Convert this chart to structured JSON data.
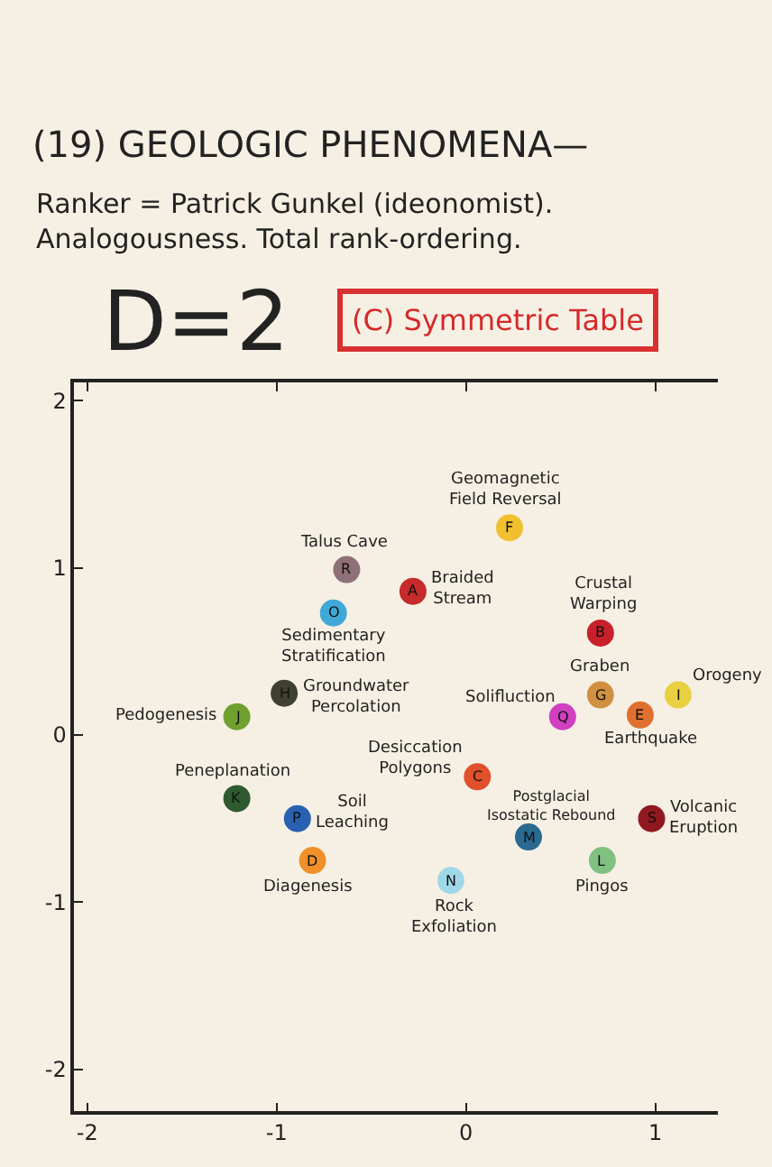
{
  "chart_data": {
    "type": "scatter",
    "title": "(19) GEOLOGIC PHENOMENA—",
    "subtitle": "Ranker = Patrick Gunkel (ideonomist).\nAnalogousness. Total rank-ordering.",
    "marker": "circle",
    "xlim": [
      -2.07,
      1.33
    ],
    "ylim": [
      -2.25,
      2.11
    ],
    "xticks": [
      -2,
      -1,
      0,
      1
    ],
    "yticks": [
      -2,
      -1,
      0,
      1,
      2
    ],
    "series": [
      {
        "name": "Braided\nStream",
        "color": "#c62a2a",
        "x": [
          -0.28
        ],
        "values": [
          0.86
        ]
      },
      {
        "name": "Crustal\nWarping",
        "color": "#c8202a",
        "x": [
          0.71
        ],
        "values": [
          0.61
        ]
      },
      {
        "name": "Desiccation\nPolygons",
        "color": "#e0502a",
        "x": [
          0.06
        ],
        "values": [
          -0.25
        ]
      },
      {
        "name": "Diagenesis",
        "color": "#f0902a",
        "x": [
          -0.81
        ],
        "values": [
          -0.75
        ]
      },
      {
        "name": "Earthquake",
        "color": "#e07030",
        "x": [
          0.92
        ],
        "values": [
          0.12
        ]
      },
      {
        "name": "Geomagnetic\nField Reversal",
        "color": "#f0c030",
        "x": [
          0.23
        ],
        "values": [
          1.24
        ]
      },
      {
        "name": "Graben",
        "color": "#d09040",
        "x": [
          0.71
        ],
        "values": [
          0.24
        ]
      },
      {
        "name": "Groundwater\nPercolation",
        "color": "#404030",
        "x": [
          -0.96
        ],
        "values": [
          0.25
        ]
      },
      {
        "name": "Orogeny",
        "color": "#e8d040",
        "x": [
          1.12
        ],
        "values": [
          0.24
        ]
      },
      {
        "name": "Pedogenesis",
        "color": "#70a030",
        "x": [
          -1.21
        ],
        "values": [
          0.11
        ]
      },
      {
        "name": "Peneplanation",
        "color": "#2f5a30",
        "x": [
          -1.21
        ],
        "values": [
          -0.38
        ]
      },
      {
        "name": "Pingos",
        "color": "#80c080",
        "x": [
          0.72
        ],
        "values": [
          -0.75
        ]
      },
      {
        "name": "Postglacial\nIsostatic Rebound",
        "color": "#2a6a90",
        "x": [
          0.33
        ],
        "values": [
          -0.61
        ]
      },
      {
        "name": "Rock\nExfoliation",
        "color": "#a0d8e8",
        "x": [
          -0.08
        ],
        "values": [
          -0.87
        ]
      },
      {
        "name": "Sedimentary\nStratification",
        "color": "#40a8d8",
        "x": [
          -0.7
        ],
        "values": [
          0.73
        ]
      },
      {
        "name": "Soil\nLeaching",
        "color": "#2a60b0",
        "x": [
          -0.89
        ],
        "values": [
          -0.5
        ]
      },
      {
        "name": "Solifluction",
        "color": "#d040c0",
        "x": [
          0.51
        ],
        "values": [
          0.11
        ]
      },
      {
        "name": "Talus Cave",
        "color": "#907078",
        "x": [
          -0.63
        ],
        "values": [
          0.99
        ]
      },
      {
        "name": "Volcanic\nEruption",
        "color": "#901820",
        "x": [
          0.98
        ],
        "values": [
          -0.5
        ]
      }
    ],
    "annotations": [
      "D=2",
      "(C) Symmetric Table",
      {
        "text": "A",
        "x": -0.28,
        "y": 0.86
      },
      {
        "text": "B",
        "x": 0.71,
        "y": 0.61
      },
      {
        "text": "C",
        "x": 0.06,
        "y": -0.25
      },
      {
        "text": "D",
        "x": -0.81,
        "y": -0.75
      },
      {
        "text": "E",
        "x": 0.92,
        "y": 0.12
      },
      {
        "text": "F",
        "x": 0.23,
        "y": 1.24
      },
      {
        "text": "G",
        "x": 0.71,
        "y": 0.24
      },
      {
        "text": "H",
        "x": -0.96,
        "y": 0.25
      },
      {
        "text": "I",
        "x": 1.12,
        "y": 0.24
      },
      {
        "text": "J",
        "x": -1.21,
        "y": 0.11
      },
      {
        "text": "K",
        "x": -1.21,
        "y": -0.38
      },
      {
        "text": "L",
        "x": 0.72,
        "y": -0.75
      },
      {
        "text": "M",
        "x": 0.33,
        "y": -0.61
      },
      {
        "text": "N",
        "x": -0.08,
        "y": -0.87
      },
      {
        "text": "O",
        "x": -0.7,
        "y": 0.73
      },
      {
        "text": "P",
        "x": -0.89,
        "y": -0.5
      },
      {
        "text": "Q",
        "x": 0.51,
        "y": 0.11
      },
      {
        "text": "R",
        "x": -0.63,
        "y": 0.99
      },
      {
        "text": "S",
        "x": 0.98,
        "y": -0.5
      }
    ]
  }
}
